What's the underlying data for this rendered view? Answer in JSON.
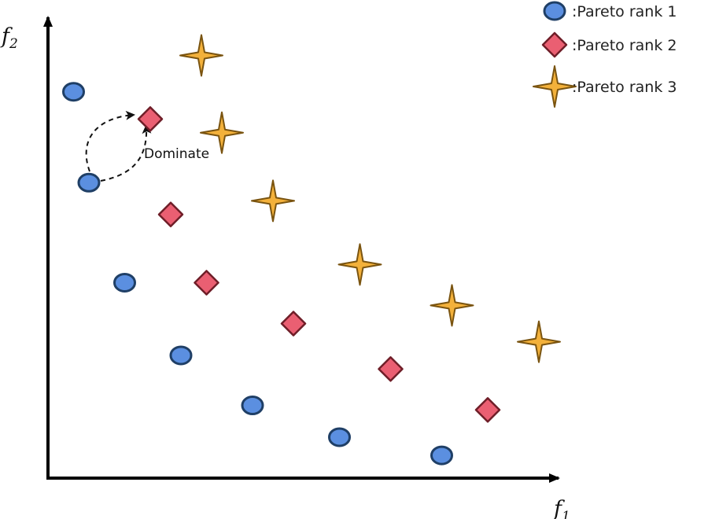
{
  "chart_data": {
    "type": "scatter",
    "xlabel": "f1",
    "ylabel": "f2",
    "xlabel_parts": {
      "base": "f",
      "sub": "1"
    },
    "ylabel_parts": {
      "base": "f",
      "sub": "2"
    },
    "xlim": [
      0,
      100
    ],
    "ylim": [
      0,
      100
    ],
    "grid": false,
    "legend_position": "top-right",
    "series": [
      {
        "name": ":Pareto rank 1",
        "marker": "circle",
        "color": "#5b8fe0",
        "edge_color": "#1f3f66",
        "points": [
          [
            5,
            85
          ],
          [
            8,
            65
          ],
          [
            15,
            43
          ],
          [
            26,
            27
          ],
          [
            40,
            16
          ],
          [
            57,
            9
          ],
          [
            77,
            5
          ]
        ]
      },
      {
        "name": ":Pareto rank 2",
        "marker": "diamond",
        "color": "#ea5f72",
        "edge_color": "#6f1e28",
        "points": [
          [
            20,
            79
          ],
          [
            24,
            58
          ],
          [
            31,
            43
          ],
          [
            48,
            34
          ],
          [
            67,
            24
          ],
          [
            86,
            15
          ]
        ]
      },
      {
        "name": ":Pareto rank 3",
        "marker": "star4",
        "color": "#f3b13b",
        "edge_color": "#7a5410",
        "points": [
          [
            30,
            93
          ],
          [
            34,
            76
          ],
          [
            44,
            61
          ],
          [
            61,
            47
          ],
          [
            79,
            38
          ],
          [
            96,
            30
          ]
        ]
      }
    ],
    "annotations": [
      {
        "text": "Dominate",
        "from_point": [
          8,
          65
        ],
        "to_point": [
          20,
          79
        ]
      }
    ]
  },
  "colors": {
    "axis": "#000000",
    "arrow": "#111111"
  }
}
